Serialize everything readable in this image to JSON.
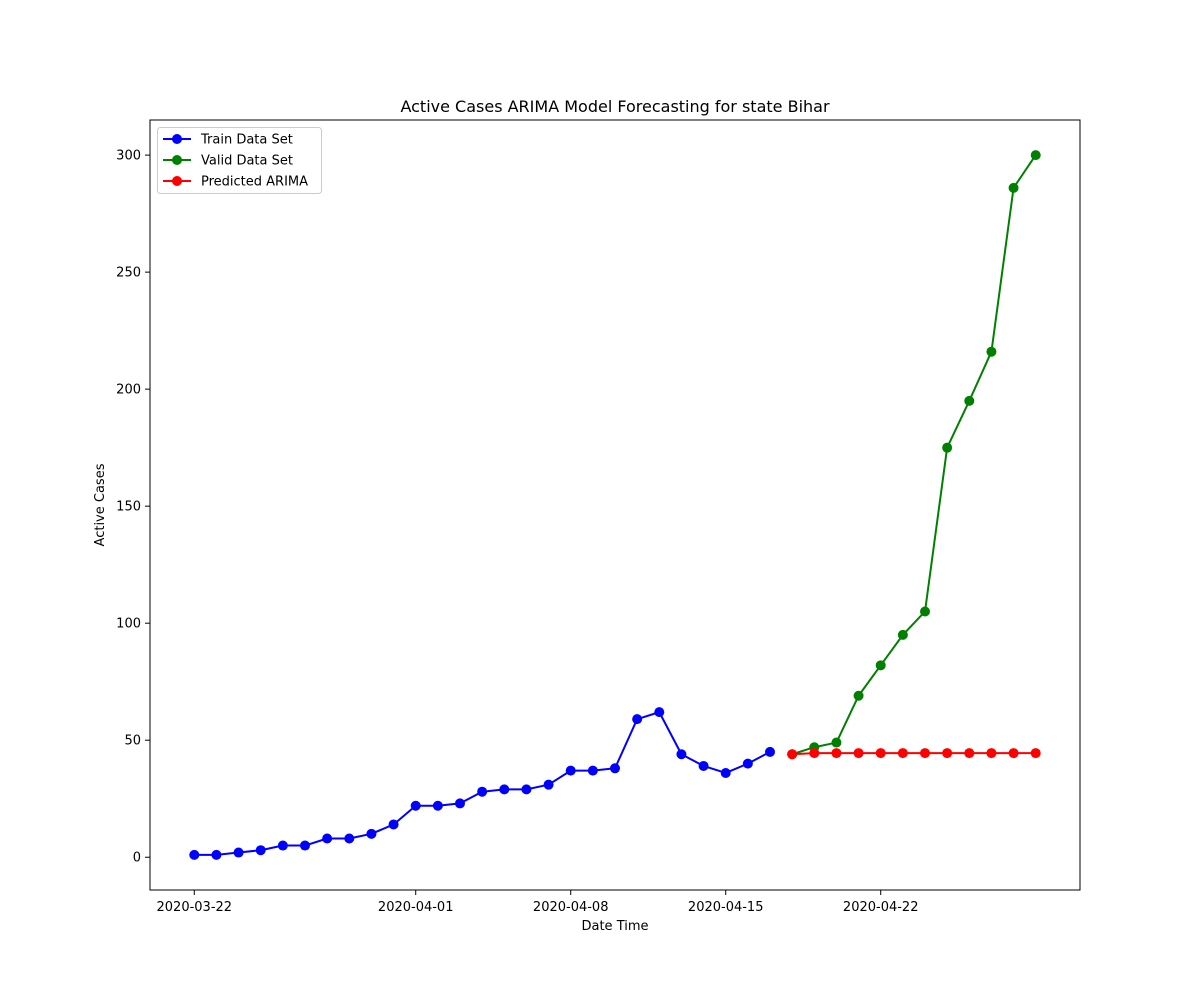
{
  "chart_data": {
    "type": "line",
    "title": "Active Cases ARIMA Model Forecasting for state Bihar",
    "xlabel": "Date Time",
    "ylabel": "Active Cases",
    "xlim": [
      "2020-03-20",
      "2020-05-01"
    ],
    "ylim": [
      -14,
      315
    ],
    "x_ticks": [
      "2020-03-22",
      "2020-04-01",
      "2020-04-08",
      "2020-04-15",
      "2020-04-22"
    ],
    "y_ticks": [
      0,
      50,
      100,
      150,
      200,
      250,
      300
    ],
    "grid": false,
    "legend_position": "upper-left",
    "series": [
      {
        "name": "Train Data Set",
        "color": "#0000ff",
        "x": [
          "2020-03-22",
          "2020-03-23",
          "2020-03-24",
          "2020-03-25",
          "2020-03-26",
          "2020-03-27",
          "2020-03-28",
          "2020-03-29",
          "2020-03-30",
          "2020-03-31",
          "2020-04-01",
          "2020-04-02",
          "2020-04-03",
          "2020-04-04",
          "2020-04-05",
          "2020-04-06",
          "2020-04-07",
          "2020-04-08",
          "2020-04-09",
          "2020-04-10",
          "2020-04-11",
          "2020-04-12",
          "2020-04-13",
          "2020-04-14",
          "2020-04-15",
          "2020-04-16",
          "2020-04-17"
        ],
        "values": [
          1,
          1,
          2,
          3,
          5,
          5,
          8,
          8,
          10,
          14,
          22,
          22,
          23,
          28,
          29,
          29,
          31,
          37,
          37,
          38,
          59,
          62,
          44,
          39,
          36,
          40,
          45
        ]
      },
      {
        "name": "Valid Data Set",
        "color": "#008000",
        "x": [
          "2020-04-18",
          "2020-04-19",
          "2020-04-20",
          "2020-04-21",
          "2020-04-22",
          "2020-04-23",
          "2020-04-24",
          "2020-04-25",
          "2020-04-26",
          "2020-04-27",
          "2020-04-28",
          "2020-04-29"
        ],
        "values": [
          44,
          47,
          49,
          69,
          82,
          95,
          105,
          175,
          195,
          216,
          286,
          300
        ]
      },
      {
        "name": "Predicted ARIMA",
        "color": "#ff0000",
        "x": [
          "2020-04-18",
          "2020-04-19",
          "2020-04-20",
          "2020-04-21",
          "2020-04-22",
          "2020-04-23",
          "2020-04-24",
          "2020-04-25",
          "2020-04-26",
          "2020-04-27",
          "2020-04-28",
          "2020-04-29"
        ],
        "values": [
          44.0,
          44.5,
          44.5,
          44.5,
          44.5,
          44.5,
          44.5,
          44.5,
          44.5,
          44.5,
          44.5,
          44.5
        ]
      }
    ]
  }
}
